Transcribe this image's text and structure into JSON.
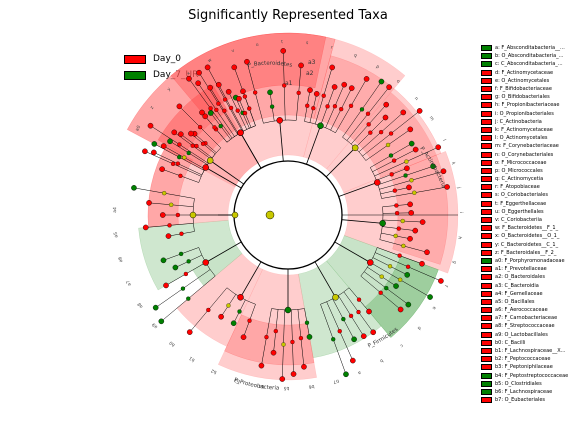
{
  "title": "Significantly Represented Taxa",
  "colors": {
    "Day_0": "#ff0000",
    "Day_7_UR": "#008000",
    "node_yellow": "#c8c800"
  },
  "legend": [
    {
      "label": "Day_0",
      "color": "#ff0000"
    },
    {
      "label": "Day_7_UR",
      "color": "#008000"
    }
  ],
  "clade_labels": {
    "bacteroidetes": "P_Bacteroidetes",
    "actinobacteria": "P_Actinobacteria",
    "firmicutes": "P_Firmicutes",
    "proteobacteria": "P_Proteobacteria",
    "a1": "a1",
    "a2": "a2",
    "a3": "a3"
  },
  "key": [
    {
      "text": "a: F_Abscondit­abacteria__...",
      "color": "green"
    },
    {
      "text": "b: O_Absconditabacteria_...",
      "color": "green"
    },
    {
      "text": "c: C_Absconditabacteria_...",
      "color": "green"
    },
    {
      "text": "d: F_Actinomycetaceae",
      "color": "red"
    },
    {
      "text": "e: O_Actinomycetales",
      "color": "red"
    },
    {
      "text": "f: F_Bifidobacteriaceae",
      "color": "red"
    },
    {
      "text": "g: O_Bifidobacteriales",
      "color": "red"
    },
    {
      "text": "h: F_Propionibacteriaceae",
      "color": "red"
    },
    {
      "text": "i: O_Propionibacteriales",
      "color": "red"
    },
    {
      "text": "j: C_Actinobacteria",
      "color": "red"
    },
    {
      "text": "k: F_Actinomycetaceae",
      "color": "red"
    },
    {
      "text": "l: O_Actinomycetales",
      "color": "red"
    },
    {
      "text": "m: F_Corynebacteriaceae",
      "color": "red"
    },
    {
      "text": "n: O_Corynebacteriales",
      "color": "red"
    },
    {
      "text": "o: F_Micrococcaceae",
      "color": "red"
    },
    {
      "text": "p: O_Micrococcales",
      "color": "red"
    },
    {
      "text": "q: C_Actinomycetia",
      "color": "red"
    },
    {
      "text": "r: F_Atopobiaceae",
      "color": "red"
    },
    {
      "text": "s: O_Coriobacteriales",
      "color": "red"
    },
    {
      "text": "t: F_Eggerthellaceae",
      "color": "red"
    },
    {
      "text": "u: O_Eggerthellales",
      "color": "red"
    },
    {
      "text": "v: C_Coriobacteriia",
      "color": "red"
    },
    {
      "text": "w: F_Bacteroidetes__F_1_",
      "color": "red"
    },
    {
      "text": "x: O_Bacteroidetes__O_1_",
      "color": "red"
    },
    {
      "text": "y: C_Bacteroidetes__C_1_",
      "color": "red"
    },
    {
      "text": "z: F_Bacteroidales__F_2_",
      "color": "red"
    },
    {
      "text": "a0: F_Porphyromonadaceae",
      "color": "green"
    },
    {
      "text": "a1: F_Prevotellaceae",
      "color": "red"
    },
    {
      "text": "a2: O_Bacteroidales",
      "color": "red"
    },
    {
      "text": "a3: C_Bacteroidia",
      "color": "red"
    },
    {
      "text": "a4: F_Gemellaceae",
      "color": "red"
    },
    {
      "text": "a5: O_Bacillales",
      "color": "red"
    },
    {
      "text": "a6: F_Aerococcaceae",
      "color": "red"
    },
    {
      "text": "a7: F_Carnobacteriaceae",
      "color": "red"
    },
    {
      "text": "a8: F_Streptococcaceae",
      "color": "red"
    },
    {
      "text": "a9: O_Lactobacillales",
      "color": "red"
    },
    {
      "text": "b0: C_Bacilli",
      "color": "red"
    },
    {
      "text": "b1: F_Lachnospiraceae__X...",
      "color": "red"
    },
    {
      "text": "b2: F_Peptococcaceae",
      "color": "red"
    },
    {
      "text": "b3: F_Peptoniphilaceae",
      "color": "red"
    },
    {
      "text": "b4: F_Peptostreptococcaceae",
      "color": "green"
    },
    {
      "text": "b5: O_Clostridiales",
      "color": "green"
    },
    {
      "text": "b6: F_Lachnospiraceae",
      "color": "green"
    },
    {
      "text": "b7: O_Eubacteriales",
      "color": "red"
    }
  ]
}
